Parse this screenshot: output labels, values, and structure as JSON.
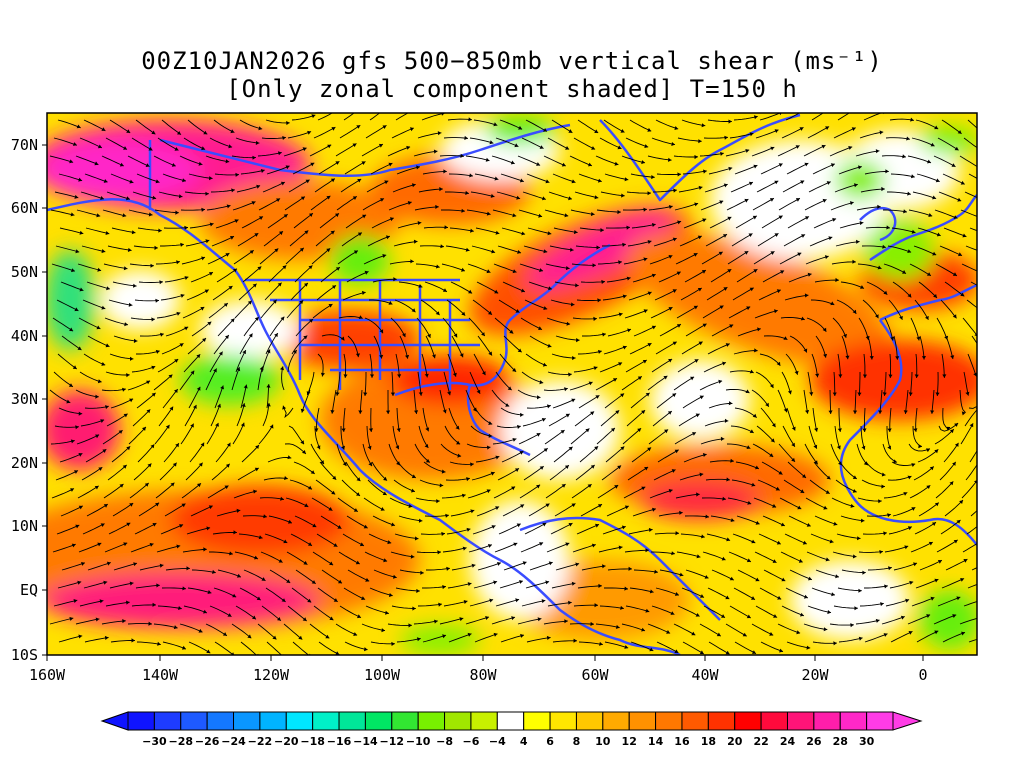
{
  "title": {
    "line1": "00Z10JAN2026 gfs 500−850mb vertical shear (ms⁻¹)",
    "line2": "[Only zonal component shaded] T=150 h"
  },
  "lat_labels": [
    "70N",
    "60N",
    "50N",
    "40N",
    "30N",
    "20N",
    "10N",
    "EQ",
    "10S"
  ],
  "lon_labels": [
    "160W",
    "140W",
    "120W",
    "100W",
    "80W",
    "60W",
    "40W",
    "20W",
    "0"
  ],
  "colorbar": {
    "labels": [
      "-30",
      "-28",
      "-26",
      "-24",
      "-22",
      "-20",
      "-18",
      "-16",
      "-14",
      "-12",
      "-10",
      "-8",
      "-6",
      "-4",
      "4",
      "6",
      "8",
      "10",
      "12",
      "14",
      "16",
      "18",
      "20",
      "22",
      "24",
      "26",
      "28",
      "30"
    ],
    "colors": [
      "#0f14ff",
      "#1e3cff",
      "#1e5aff",
      "#1478ff",
      "#0a96ff",
      "#00b4ff",
      "#00e6ff",
      "#00f0c8",
      "#00e699",
      "#00e664",
      "#32e632",
      "#78f000",
      "#a0e600",
      "#c8f000",
      "#ffffff",
      "#ffff00",
      "#ffe600",
      "#ffc800",
      "#ffaa00",
      "#ff9100",
      "#ff7800",
      "#ff5a00",
      "#ff3200",
      "#ff0000",
      "#ff0a3c",
      "#ff1478",
      "#ff1eaa",
      "#ff28c8",
      "#ff3ce6"
    ]
  },
  "field_colors": {
    "background": "#ffff3a",
    "coast": "#3a4cff",
    "streamline": "#000000"
  }
}
